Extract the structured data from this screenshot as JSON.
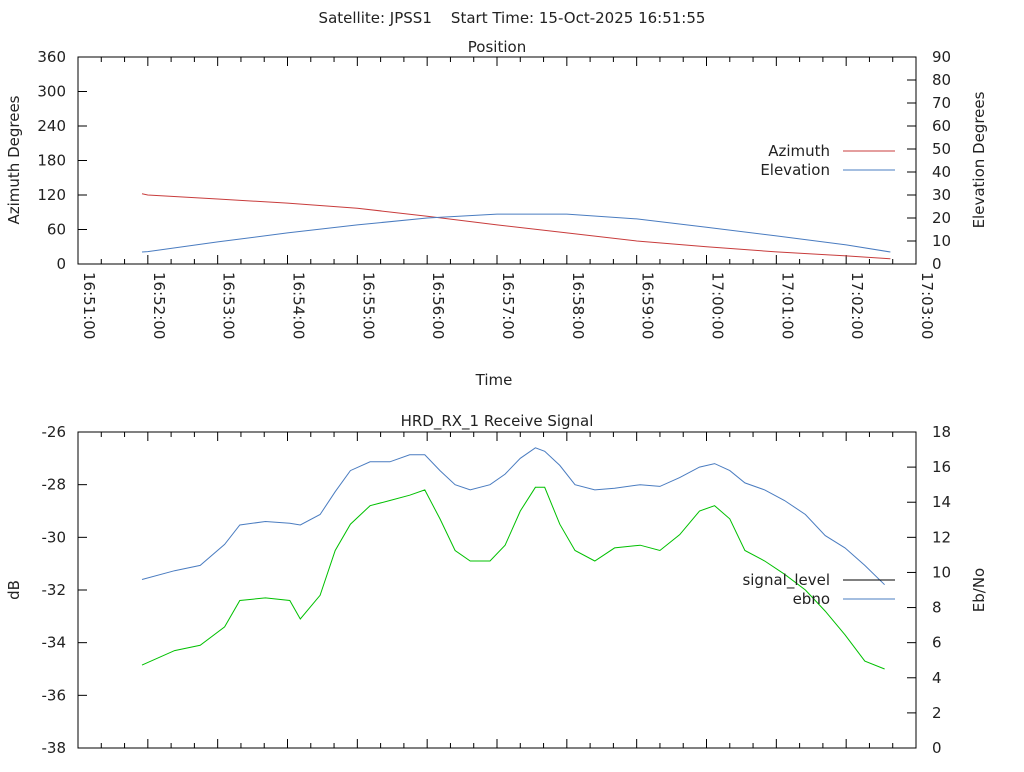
{
  "header": {
    "title": "Satellite: JPSS1    Start Time: 15-Oct-2025 16:51:55"
  },
  "colors": {
    "azimuth": "#c83c3c",
    "elevation": "#4a7cc0",
    "signal": "#00c000",
    "ebno": "#4a7cc0",
    "legend_signal": "#000000"
  },
  "chart_data": [
    {
      "type": "line",
      "title": "Position",
      "xlabel": "Time",
      "ylabel": "Azimuth Degrees",
      "y2label": "Elevation Degrees",
      "x_unit": "seconds since 16:51:00",
      "xlim": [
        0,
        720
      ],
      "ylim": [
        0,
        360
      ],
      "y2lim": [
        0,
        90
      ],
      "yticks": [
        "0",
        "60",
        "120",
        "180",
        "240",
        "300",
        "360"
      ],
      "y2ticks": [
        "0",
        "10",
        "20",
        "30",
        "40",
        "50",
        "60",
        "70",
        "80",
        "90"
      ],
      "xticks": [
        "16:51:00",
        "16:52:00",
        "16:53:00",
        "16:54:00",
        "16:55:00",
        "16:56:00",
        "16:57:00",
        "16:58:00",
        "16:59:00",
        "17:00:00",
        "17:01:00",
        "17:02:00",
        "17:03:00"
      ],
      "legend_position": "right",
      "series": [
        {
          "name": "Azimuth",
          "axis": "y",
          "x": [
            55,
            60,
            120,
            180,
            240,
            300,
            360,
            420,
            480,
            540,
            600,
            660,
            698
          ],
          "values": [
            122,
            120,
            113,
            106,
            97,
            83,
            68,
            54,
            40,
            30,
            21,
            14,
            9
          ]
        },
        {
          "name": "Elevation",
          "axis": "y2",
          "x": [
            55,
            60,
            120,
            180,
            240,
            300,
            360,
            420,
            480,
            540,
            600,
            660,
            698
          ],
          "values": [
            5.2,
            5.4,
            9.6,
            13.5,
            17,
            20,
            21.7,
            21.7,
            19.6,
            16,
            12.2,
            8.3,
            5.2
          ]
        }
      ]
    },
    {
      "type": "line",
      "title": "HRD_RX_1 Receive Signal",
      "ylabel": "dB",
      "y2label": "Eb/No",
      "x_unit": "seconds since 16:51:00",
      "xlim": [
        0,
        720
      ],
      "ylim": [
        -38,
        -26
      ],
      "y2lim": [
        0,
        18
      ],
      "yticks": [
        "-38",
        "-36",
        "-34",
        "-32",
        "-30",
        "-28",
        "-26"
      ],
      "y2ticks": [
        "0",
        "2",
        "4",
        "6",
        "8",
        "10",
        "12",
        "14",
        "16",
        "18"
      ],
      "legend_position": "right",
      "series": [
        {
          "name": "signal_level",
          "axis": "y",
          "x": [
            55,
            83,
            105,
            126,
            139,
            161,
            182,
            191,
            208,
            221,
            234,
            251,
            268,
            285,
            298,
            311,
            324,
            337,
            354,
            367,
            380,
            393,
            401,
            414,
            427,
            444,
            461,
            483,
            500,
            517,
            534,
            547,
            560,
            573,
            590,
            607,
            625,
            642,
            659,
            676,
            693
          ],
          "values": [
            -34.85,
            -34.3,
            -34.1,
            -33.4,
            -32.4,
            -32.3,
            -32.4,
            -33.1,
            -32.2,
            -30.5,
            -29.5,
            -28.8,
            -28.6,
            -28.4,
            -28.2,
            -29.3,
            -30.5,
            -30.9,
            -30.9,
            -30.3,
            -29.0,
            -28.1,
            -28.1,
            -29.5,
            -30.5,
            -30.9,
            -30.4,
            -30.3,
            -30.5,
            -29.9,
            -29.0,
            -28.8,
            -29.3,
            -30.5,
            -30.9,
            -31.4,
            -32.0,
            -32.8,
            -33.7,
            -34.7,
            -35.0
          ]
        },
        {
          "name": "ebno",
          "axis": "y2",
          "x": [
            55,
            83,
            105,
            126,
            139,
            161,
            182,
            191,
            208,
            221,
            234,
            251,
            268,
            285,
            298,
            311,
            324,
            337,
            354,
            367,
            380,
            393,
            401,
            414,
            427,
            444,
            461,
            483,
            500,
            517,
            534,
            547,
            560,
            573,
            590,
            607,
            625,
            642,
            659,
            676,
            693
          ],
          "values": [
            9.6,
            10.1,
            10.4,
            11.6,
            12.7,
            12.9,
            12.8,
            12.7,
            13.3,
            14.6,
            15.8,
            16.3,
            16.3,
            16.7,
            16.7,
            15.8,
            15.0,
            14.7,
            15.0,
            15.6,
            16.5,
            17.1,
            16.9,
            16.1,
            15.0,
            14.7,
            14.8,
            15.0,
            14.9,
            15.4,
            16.0,
            16.2,
            15.8,
            15.1,
            14.7,
            14.1,
            13.3,
            12.1,
            11.4,
            10.4,
            9.3
          ]
        }
      ]
    }
  ]
}
